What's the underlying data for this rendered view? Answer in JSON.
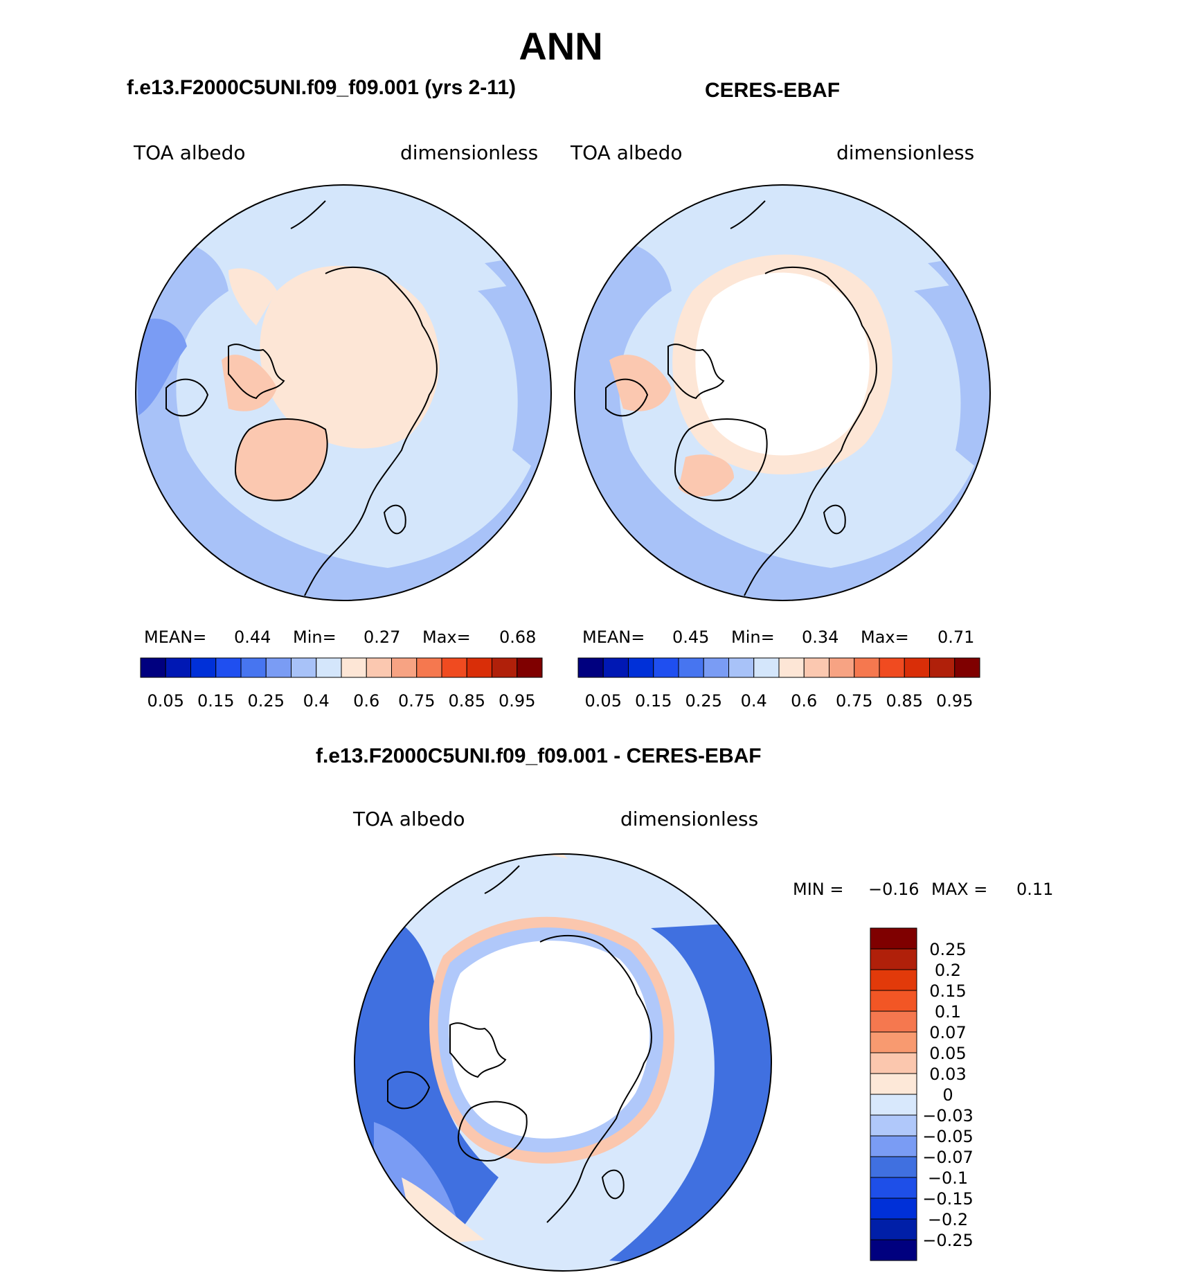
{
  "title": "ANN",
  "panels": [
    {
      "title": "f.e13.F2000C5UNI.f09_f09.001 (yrs 2-11)",
      "left_label": "TOA albedo",
      "right_label": "dimensionless",
      "stats": {
        "mean_label": "MEAN=",
        "mean": "0.44",
        "min_label": "Min=",
        "min": "0.27",
        "max_label": "Max=",
        "max": "0.68"
      }
    },
    {
      "title": "CERES-EBAF",
      "left_label": "TOA albedo",
      "right_label": "dimensionless",
      "stats": {
        "mean_label": "MEAN=",
        "mean": "0.45",
        "min_label": "Min=",
        "min": "0.34",
        "max_label": "Max=",
        "max": "0.71"
      }
    }
  ],
  "diff_panel": {
    "title": "f.e13.F2000C5UNI.f09_f09.001 - CERES-EBAF",
    "left_label": "TOA albedo",
    "right_label": "dimensionless",
    "stats": {
      "min_label": "MIN =",
      "min": "−0.16",
      "max_label": "MAX =",
      "max": "0.11"
    }
  },
  "colorbar_main": {
    "colors": [
      "#00007f",
      "#0018b4",
      "#0030d8",
      "#1f4ff0",
      "#4775f0",
      "#7a9cf4",
      "#a8c2f8",
      "#d4e6fb",
      "#fde6d6",
      "#fbc8b0",
      "#f7a383",
      "#f5784f",
      "#f04b20",
      "#d92e08",
      "#b0200a",
      "#7f0000"
    ],
    "tick_labels": [
      "0.05",
      "0.15",
      "0.25",
      "0.4",
      "0.6",
      "0.75",
      "0.85",
      "0.95"
    ]
  },
  "colorbar_diff": {
    "colors": [
      "#00007f",
      "#001fa8",
      "#0030d8",
      "#1e4fe8",
      "#4070e0",
      "#7a9cf4",
      "#b0c8fa",
      "#d8e8fc",
      "#fde8d8",
      "#fbc7ae",
      "#f89a70",
      "#f5784f",
      "#f25625",
      "#e23a0a",
      "#b0200a",
      "#7f0000"
    ],
    "tick_labels": [
      "0.25",
      "0.2",
      "0.15",
      "0.1",
      "0.07",
      "0.05",
      "0.03",
      "0",
      "−0.03",
      "−0.05",
      "−0.07",
      "−0.1",
      "−0.15",
      "−0.2",
      "−0.25"
    ]
  }
}
